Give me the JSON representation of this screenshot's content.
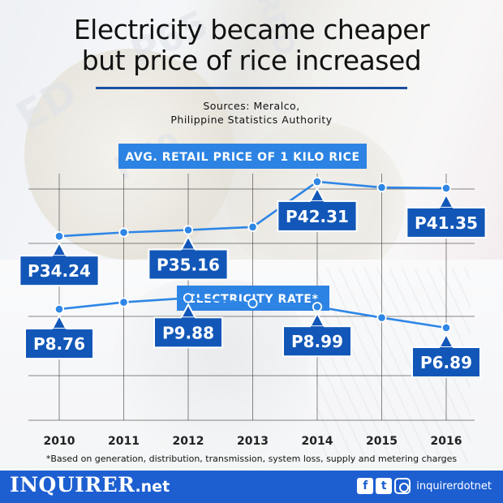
{
  "header": {
    "title_line1": "Electricity became cheaper",
    "title_line2": "but price of rice increased",
    "sources_line1": "Sources: Meralco,",
    "sources_line2": "Philippine Statistics Authority"
  },
  "colors": {
    "line": "#2e86e6",
    "callout": "#1257b8",
    "label": "#2c83e3",
    "footer": "#1d5fd1",
    "rule": "#1b4fa0"
  },
  "chart_data": {
    "type": "line",
    "title": "Electricity became cheaper but price of rice increased",
    "x": [
      "2010",
      "2011",
      "2012",
      "2013",
      "2014",
      "2015",
      "2016"
    ],
    "grid": true,
    "series": [
      {
        "name": "AVG. RETAIL PRICE OF 1 KILO RICE",
        "values": [
          34.24,
          34.8,
          35.16,
          35.6,
          42.31,
          41.45,
          41.35
        ],
        "labels": [
          "P34.24",
          "",
          "P35.16",
          "",
          "P42.31",
          "",
          "P41.35"
        ],
        "ylim": [
          31.5,
          43.5
        ]
      },
      {
        "name": "ELECTRICITY RATE*",
        "values": [
          8.76,
          9.45,
          9.88,
          9.35,
          8.99,
          7.9,
          6.89
        ],
        "labels": [
          "P8.76",
          "",
          "P9.88",
          "",
          "P8.99",
          "",
          "P6.89"
        ],
        "ylim": [
          2.0,
          10.8
        ]
      }
    ]
  },
  "footnote": "*Based on generation, distribution, transmission, system loss, supply and metering charges",
  "footer": {
    "brand": "INQUIRER",
    "brand_suffix": ".net",
    "icons": [
      "facebook-icon",
      "twitter-icon",
      "instagram-icon"
    ],
    "facebook_glyph": "f",
    "twitter_glyph": "t",
    "handle": "inquirerdotnet"
  }
}
